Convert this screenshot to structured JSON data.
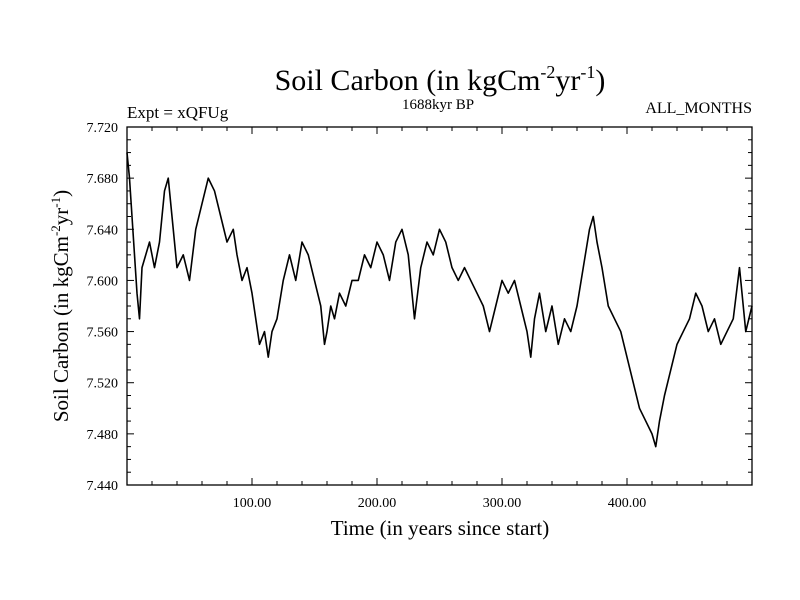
{
  "chart_data": {
    "type": "line",
    "title": "Soil Carbon (in kgCm",
    "title_sup1": "-2",
    "title_mid": "yr",
    "title_sup2": "-1",
    "title_end": ")",
    "subtitle_left": "Expt = xQFUg",
    "subtitle_center": "1688kyr BP",
    "subtitle_right": "ALL_MONTHS",
    "xlabel": "Time (in years since start)",
    "ylabel": "Soil Carbon (in kgCm",
    "ylabel_sup1": "-2",
    "ylabel_mid": "yr",
    "ylabel_sup2": "-1",
    "ylabel_end": ")",
    "xlim": [
      0,
      500
    ],
    "ylim": [
      7.44,
      7.72
    ],
    "xticks": [
      100,
      200,
      300,
      400
    ],
    "xtick_labels": [
      "100.00",
      "200.00",
      "300.00",
      "400.00"
    ],
    "yticks": [
      7.44,
      7.48,
      7.52,
      7.56,
      7.6,
      7.64,
      7.68,
      7.72
    ],
    "ytick_labels": [
      "7.440",
      "7.480",
      "7.520",
      "7.560",
      "7.600",
      "7.640",
      "7.680",
      "7.720"
    ],
    "line_color": "#000000",
    "series": [
      {
        "name": "Soil Carbon",
        "x": [
          0,
          2,
          4,
          6,
          8,
          10,
          12,
          15,
          18,
          22,
          26,
          30,
          33,
          36,
          40,
          45,
          50,
          55,
          60,
          65,
          70,
          75,
          80,
          85,
          88,
          92,
          96,
          100,
          103,
          106,
          110,
          113,
          116,
          120,
          125,
          130,
          135,
          140,
          145,
          150,
          155,
          158,
          160,
          163,
          166,
          170,
          175,
          180,
          185,
          190,
          195,
          200,
          205,
          210,
          215,
          220,
          225,
          230,
          235,
          240,
          245,
          250,
          255,
          260,
          265,
          270,
          275,
          280,
          285,
          290,
          295,
          300,
          305,
          310,
          315,
          320,
          323,
          326,
          330,
          335,
          340,
          345,
          350,
          355,
          360,
          365,
          370,
          373,
          376,
          380,
          385,
          390,
          395,
          400,
          405,
          410,
          415,
          420,
          423,
          426,
          430,
          435,
          440,
          445,
          450,
          455,
          460,
          465,
          470,
          475,
          480,
          485,
          490,
          495,
          500
        ],
        "y": [
          7.7,
          7.68,
          7.65,
          7.62,
          7.59,
          7.57,
          7.61,
          7.62,
          7.63,
          7.61,
          7.63,
          7.67,
          7.68,
          7.65,
          7.61,
          7.62,
          7.6,
          7.64,
          7.66,
          7.68,
          7.67,
          7.65,
          7.63,
          7.64,
          7.62,
          7.6,
          7.61,
          7.59,
          7.57,
          7.55,
          7.56,
          7.54,
          7.56,
          7.57,
          7.6,
          7.62,
          7.6,
          7.63,
          7.62,
          7.6,
          7.58,
          7.55,
          7.56,
          7.58,
          7.57,
          7.59,
          7.58,
          7.6,
          7.6,
          7.62,
          7.61,
          7.63,
          7.62,
          7.6,
          7.63,
          7.64,
          7.62,
          7.57,
          7.61,
          7.63,
          7.62,
          7.64,
          7.63,
          7.61,
          7.6,
          7.61,
          7.6,
          7.59,
          7.58,
          7.56,
          7.58,
          7.6,
          7.59,
          7.6,
          7.58,
          7.56,
          7.54,
          7.57,
          7.59,
          7.56,
          7.58,
          7.55,
          7.57,
          7.56,
          7.58,
          7.61,
          7.64,
          7.65,
          7.63,
          7.61,
          7.58,
          7.57,
          7.56,
          7.54,
          7.52,
          7.5,
          7.49,
          7.48,
          7.47,
          7.49,
          7.51,
          7.53,
          7.55,
          7.56,
          7.57,
          7.59,
          7.58,
          7.56,
          7.57,
          7.55,
          7.56,
          7.57,
          7.61,
          7.56,
          7.58
        ]
      }
    ]
  }
}
